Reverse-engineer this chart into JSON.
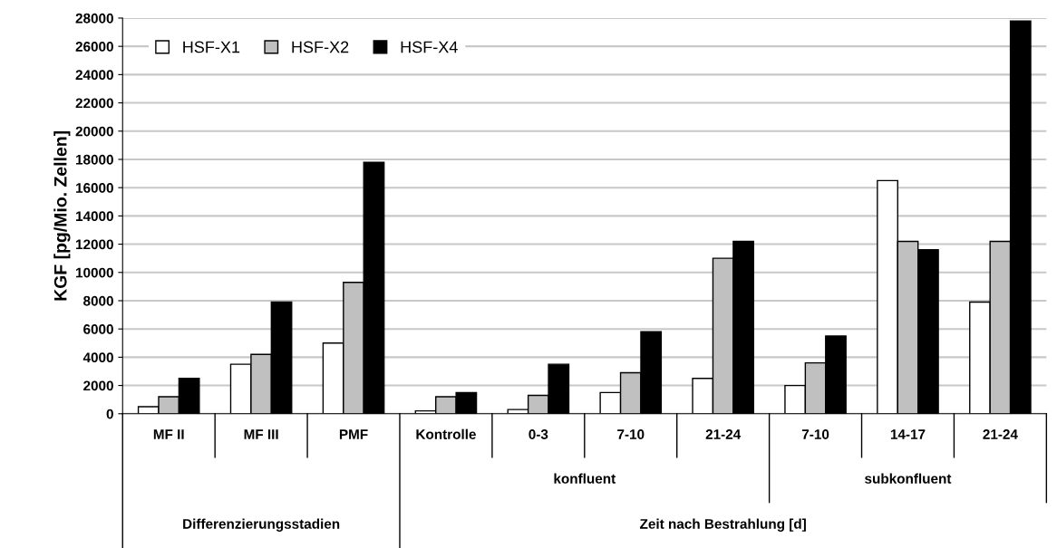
{
  "chart_data": {
    "type": "bar",
    "ylabel": "KGF [pg/Mio. Zellen]",
    "categories": [
      "MF II",
      "MF III",
      "PMF",
      "Kontrolle",
      "0-3",
      "7-10",
      "21-24",
      "7-10",
      "14-17",
      "21-24"
    ],
    "series": [
      {
        "name": "HSF-X1",
        "color": "#ffffff",
        "values": [
          500,
          3500,
          5000,
          200,
          300,
          1500,
          2500,
          2000,
          16500,
          7900
        ]
      },
      {
        "name": "HSF-X2",
        "color": "#c0c0c0",
        "values": [
          1200,
          4200,
          9300,
          1200,
          1300,
          2900,
          11000,
          3600,
          12200,
          12200
        ]
      },
      {
        "name": "HSF-X4",
        "color": "#000000",
        "values": [
          2500,
          7900,
          17800,
          1500,
          3500,
          5800,
          12200,
          5500,
          11600,
          27800
        ]
      }
    ],
    "ylim": [
      0,
      28000
    ],
    "yticks": [
      0,
      2000,
      4000,
      6000,
      8000,
      10000,
      12000,
      14000,
      16000,
      18000,
      20000,
      22000,
      24000,
      26000,
      28000
    ],
    "grid": "y",
    "legend": "top left",
    "annotations": [
      "konfluent",
      "subkonfluent",
      "Differenzierungsstadien",
      "Zeit nach Bestrahlung [d]"
    ]
  }
}
